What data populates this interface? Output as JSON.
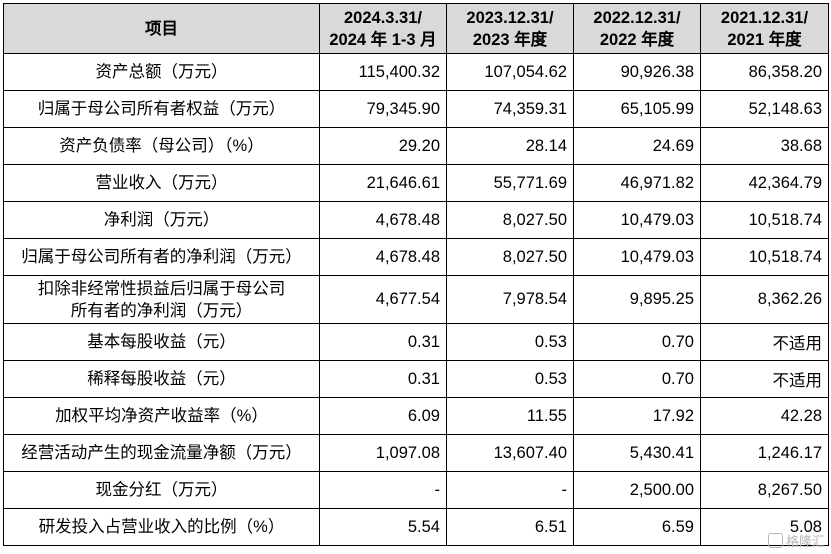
{
  "header": {
    "item": "项目",
    "periods": [
      {
        "line1": "2024.3.31/",
        "line2": "2024 年 1-3 月"
      },
      {
        "line1": "2023.12.31/",
        "line2": "2023 年度"
      },
      {
        "line1": "2022.12.31/",
        "line2": "2022 年度"
      },
      {
        "line1": "2021.12.31/",
        "line2": "2021 年度"
      }
    ]
  },
  "rows": [
    {
      "label": [
        "资产总额（万元）"
      ],
      "values": [
        "115,400.32",
        "107,054.62",
        "90,926.38",
        "86,358.20"
      ]
    },
    {
      "label": [
        "归属于母公司所有者权益（万元）"
      ],
      "values": [
        "79,345.90",
        "74,359.31",
        "65,105.99",
        "52,148.63"
      ]
    },
    {
      "label": [
        "资产负债率（母公司）（%）"
      ],
      "values": [
        "29.20",
        "28.14",
        "24.69",
        "38.68"
      ]
    },
    {
      "label": [
        "营业收入（万元）"
      ],
      "values": [
        "21,646.61",
        "55,771.69",
        "46,971.82",
        "42,364.79"
      ]
    },
    {
      "label": [
        "净利润（万元）"
      ],
      "values": [
        "4,678.48",
        "8,027.50",
        "10,479.03",
        "10,518.74"
      ]
    },
    {
      "label": [
        "归属于母公司所有者的净利润（万元）"
      ],
      "values": [
        "4,678.48",
        "8,027.50",
        "10,479.03",
        "10,518.74"
      ]
    },
    {
      "label": [
        "扣除非经常性损益后归属于母公司",
        "所有者的净利润（万元）"
      ],
      "values": [
        "4,677.54",
        "7,978.54",
        "9,895.25",
        "8,362.26"
      ]
    },
    {
      "label": [
        "基本每股收益（元）"
      ],
      "values": [
        "0.31",
        "0.53",
        "0.70",
        "不适用"
      ]
    },
    {
      "label": [
        "稀释每股收益（元）"
      ],
      "values": [
        "0.31",
        "0.53",
        "0.70",
        "不适用"
      ]
    },
    {
      "label": [
        "加权平均净资产收益率（%）"
      ],
      "values": [
        "6.09",
        "11.55",
        "17.92",
        "42.28"
      ]
    },
    {
      "label": [
        "经营活动产生的现金流量净额（万元）"
      ],
      "values": [
        "1,097.08",
        "13,607.40",
        "5,430.41",
        "1,246.17"
      ]
    },
    {
      "label": [
        "现金分红（万元）"
      ],
      "values": [
        "-",
        "-",
        "2,500.00",
        "8,267.50"
      ]
    },
    {
      "label": [
        "研发投入占营业收入的比例（%）"
      ],
      "values": [
        "5.54",
        "6.51",
        "6.59",
        "5.08"
      ]
    }
  ],
  "watermark": {
    "text": "格隆汇",
    "icon": "gelonghui-logo-icon"
  }
}
